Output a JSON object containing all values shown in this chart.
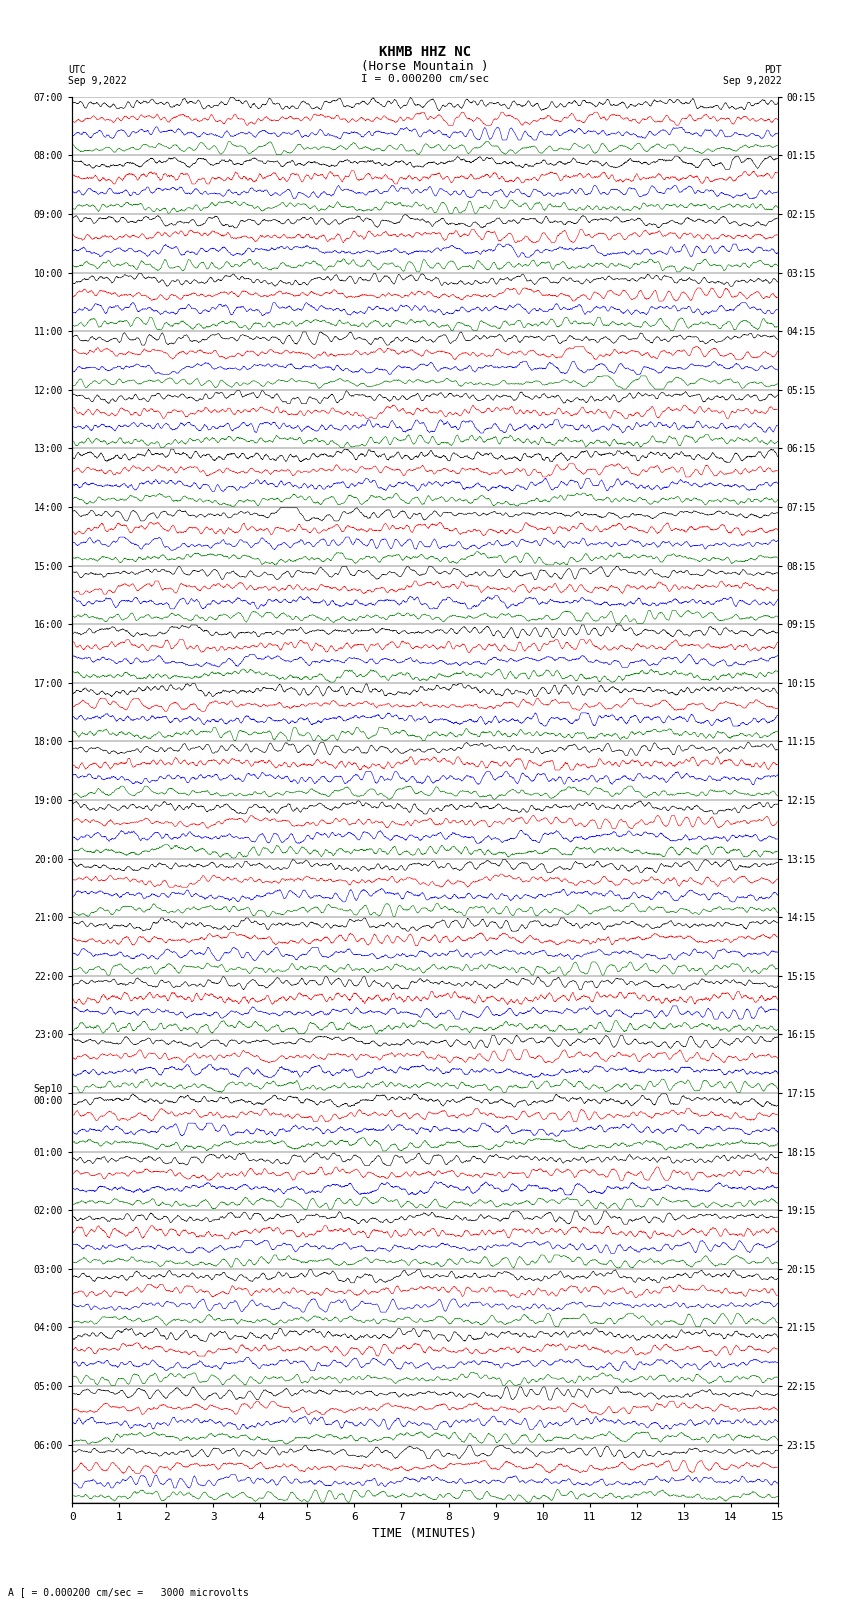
{
  "title_line1": "KHMB HHZ NC",
  "title_line2": "(Horse Mountain )",
  "scale_label": "I = 0.000200 cm/sec",
  "left_label": "UTC\nSep 9,2022",
  "right_label": "PDT\nSep 9,2022",
  "bottom_note": "A [ = 0.000200 cm/sec =   3000 microvolts",
  "xlabel": "TIME (MINUTES)",
  "left_times": [
    "07:00",
    "08:00",
    "09:00",
    "10:00",
    "11:00",
    "12:00",
    "13:00",
    "14:00",
    "15:00",
    "16:00",
    "17:00",
    "18:00",
    "19:00",
    "20:00",
    "21:00",
    "22:00",
    "23:00",
    "Sep10\n00:00",
    "01:00",
    "02:00",
    "03:00",
    "04:00",
    "05:00",
    "06:00"
  ],
  "right_times": [
    "00:15",
    "01:15",
    "02:15",
    "03:15",
    "04:15",
    "05:15",
    "06:15",
    "07:15",
    "08:15",
    "09:15",
    "10:15",
    "11:15",
    "12:15",
    "13:15",
    "14:15",
    "15:15",
    "16:15",
    "17:15",
    "18:15",
    "19:15",
    "20:15",
    "21:15",
    "22:15",
    "23:15"
  ],
  "n_rows": 24,
  "traces_per_row": 4,
  "colors": [
    "black",
    "red",
    "blue",
    "green"
  ],
  "xlim": [
    0,
    15
  ],
  "xticks": [
    0,
    1,
    2,
    3,
    4,
    5,
    6,
    7,
    8,
    9,
    10,
    11,
    12,
    13,
    14,
    15
  ],
  "bg_color": "white",
  "trace_amplitude": 0.45,
  "noise_seed": 42,
  "samples_per_trace": 4500
}
